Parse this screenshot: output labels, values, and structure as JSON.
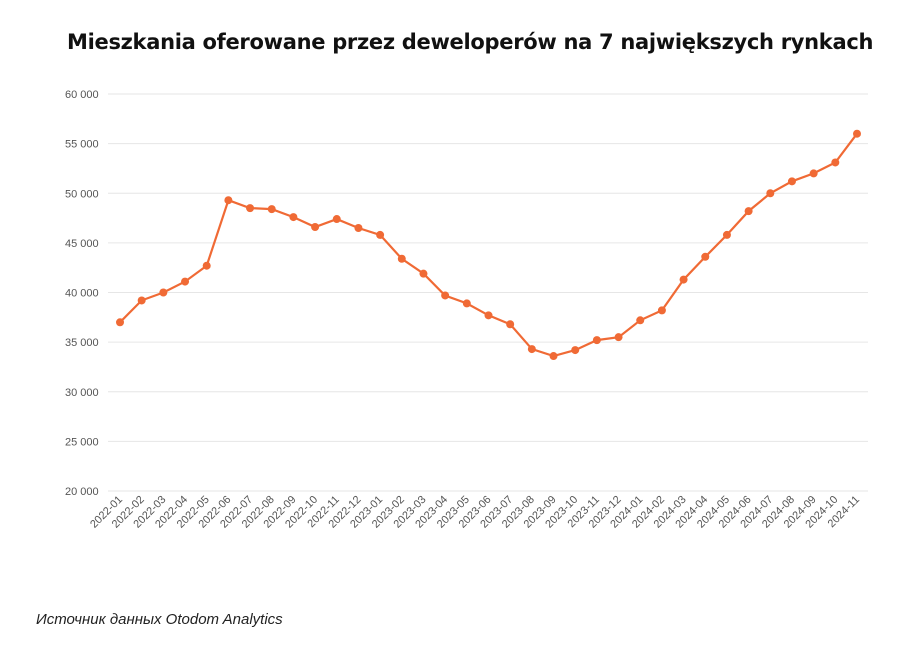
{
  "chart_data": {
    "type": "line",
    "title": "Mieszkania oferowane przez deweloperów na 7 największych rynkach",
    "xlabel": "",
    "ylabel": "",
    "ylim": [
      20000,
      60000
    ],
    "yticks": [
      60000,
      55000,
      50000,
      45000,
      40000,
      35000,
      30000,
      25000,
      20000
    ],
    "ytick_labels": [
      "60 000",
      "55 000",
      "50 000",
      "45 000",
      "40 000",
      "35 000",
      "30 000",
      "25 000",
      "20 000"
    ],
    "grid": true,
    "categories": [
      "2022-01",
      "2022-02",
      "2022-03",
      "2022-04",
      "2022-05",
      "2022-06",
      "2022-07",
      "2022-08",
      "2022-09",
      "2022-10",
      "2022-11",
      "2022-12",
      "2023-01",
      "2023-02",
      "2023-03",
      "2023-04",
      "2023-05",
      "2023-06",
      "2023-07",
      "2023-08",
      "2023-09",
      "2023-10",
      "2023-11",
      "2023-12",
      "2024-01",
      "2024-02",
      "2024-03",
      "2024-04",
      "2024-05",
      "2024-06",
      "2024-07",
      "2024-08",
      "2024-09",
      "2024-10",
      "2024-11"
    ],
    "series": [
      {
        "name": "Mieszkania oferowane",
        "color": "#f06a35",
        "values": [
          37000,
          39200,
          40000,
          41100,
          42700,
          49300,
          48500,
          48400,
          47600,
          46600,
          47400,
          46500,
          45800,
          43400,
          41900,
          39700,
          38900,
          37700,
          36800,
          34300,
          33600,
          34200,
          35200,
          35500,
          37200,
          38200,
          41300,
          43600,
          45800,
          48200,
          50000,
          51200,
          52000,
          53100,
          56000
        ]
      }
    ]
  },
  "footer": {
    "source": "Источник данных Otodom Analytics"
  }
}
